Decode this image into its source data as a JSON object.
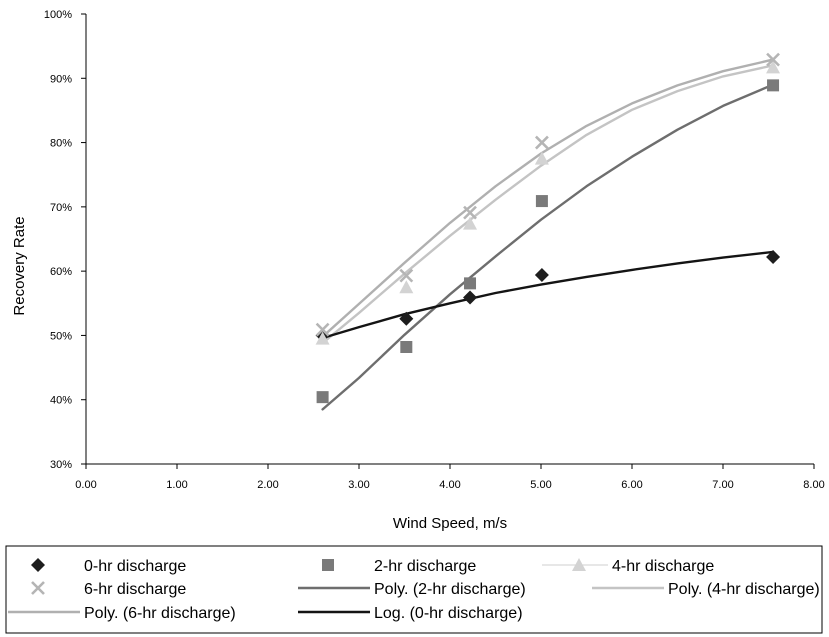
{
  "chart_data": {
    "type": "scatter",
    "title": "",
    "xlabel": "Wind Speed, m/s",
    "ylabel": "Recovery Rate",
    "xlim": [
      0,
      8
    ],
    "ylim": [
      30,
      100
    ],
    "x_ticks": [
      "0.00",
      "1.00",
      "2.00",
      "3.00",
      "4.00",
      "5.00",
      "6.00",
      "7.00",
      "8.00"
    ],
    "y_ticks": [
      "30%",
      "40%",
      "50%",
      "60%",
      "70%",
      "80%",
      "90%",
      "100%"
    ],
    "grid": false,
    "legend_position": "bottom",
    "series": [
      {
        "name": "0-hr discharge",
        "kind": "points",
        "marker": "diamond",
        "color": "#1e1e1e",
        "x": [
          2.6,
          3.52,
          4.22,
          5.01,
          7.55
        ],
        "y": [
          50.0,
          52.6,
          55.9,
          59.4,
          62.2
        ]
      },
      {
        "name": "2-hr discharge",
        "kind": "points",
        "marker": "square",
        "color": "#7a7a7a",
        "x": [
          2.6,
          3.52,
          4.22,
          5.01,
          7.55
        ],
        "y": [
          40.4,
          48.2,
          58.1,
          70.9,
          88.9
        ]
      },
      {
        "name": "4-hr discharge",
        "kind": "points",
        "marker": "triangle",
        "color": "#d3d3d3",
        "x": [
          2.6,
          3.52,
          4.22,
          5.01,
          7.55
        ],
        "y": [
          49.5,
          57.5,
          67.4,
          77.5,
          91.7
        ]
      },
      {
        "name": "6-hr discharge",
        "kind": "points",
        "marker": "x",
        "color": "#b5b5b5",
        "x": [
          2.6,
          3.52,
          4.22,
          5.01,
          7.55
        ],
        "y": [
          50.9,
          59.3,
          69.1,
          80.0,
          92.9
        ]
      },
      {
        "name": "Poly. (2-hr discharge)",
        "kind": "line",
        "color": "#6e6e6e",
        "x": [
          2.6,
          3.0,
          3.5,
          4.0,
          4.5,
          5.0,
          5.5,
          6.0,
          6.5,
          7.0,
          7.55
        ],
        "y": [
          38.5,
          43.4,
          50.1,
          56.4,
          62.3,
          68.0,
          73.2,
          77.8,
          82.0,
          85.7,
          89.0
        ]
      },
      {
        "name": "Poly. (4-hr discharge)",
        "kind": "line",
        "color": "#c4c4c4",
        "x": [
          2.6,
          3.0,
          3.5,
          4.0,
          4.5,
          5.0,
          5.5,
          6.0,
          6.5,
          7.0,
          7.55
        ],
        "y": [
          48.8,
          53.5,
          59.6,
          65.5,
          71.1,
          76.4,
          81.2,
          85.1,
          88.0,
          90.3,
          92.0
        ]
      },
      {
        "name": "Poly. (6-hr discharge)",
        "kind": "line",
        "color": "#b0b0b0",
        "x": [
          2.6,
          3.0,
          3.5,
          4.0,
          4.5,
          5.0,
          5.5,
          6.0,
          6.5,
          7.0,
          7.55
        ],
        "y": [
          49.8,
          54.9,
          61.3,
          67.5,
          73.2,
          78.3,
          82.6,
          86.1,
          88.9,
          91.1,
          92.9
        ]
      },
      {
        "name": "Log. (0-hr discharge)",
        "kind": "line",
        "color": "#141414",
        "x": [
          2.6,
          3.0,
          3.5,
          4.0,
          4.5,
          5.0,
          5.5,
          6.0,
          6.5,
          7.0,
          7.55
        ],
        "y": [
          49.6,
          51.3,
          53.3,
          55.0,
          56.6,
          57.9,
          59.1,
          60.2,
          61.2,
          62.1,
          63.0
        ]
      }
    ]
  }
}
